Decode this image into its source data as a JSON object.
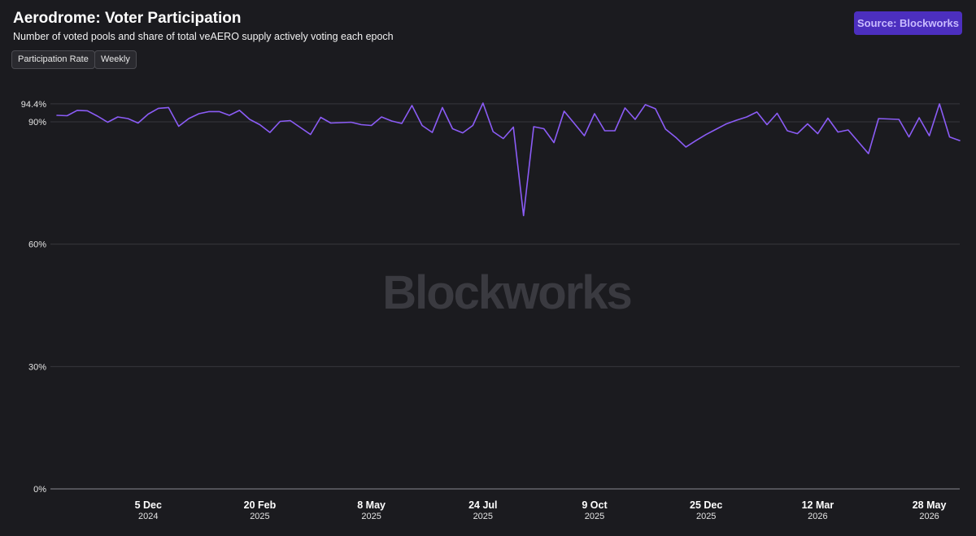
{
  "header": {
    "title": "Aerodrome: Voter Participation",
    "subtitle": "Number of voted pools and share of total veAERO supply actively voting each epoch",
    "filters": [
      "Participation Rate",
      "Weekly"
    ],
    "source_button": "Source: Blockworks"
  },
  "watermark": "Blockworks",
  "colors": {
    "background": "#1b1b1f",
    "line": "#8b5cf6",
    "grid": "#37373c",
    "source_button": "#4c2fbf"
  },
  "chart_data": {
    "type": "line",
    "title": "Aerodrome: Voter Participation",
    "subtitle": "Number of voted pools and share of total veAERO supply actively voting each epoch",
    "xlabel": "",
    "ylabel": "",
    "ylim": [
      0,
      100
    ],
    "grid": "horizontal",
    "y_ticks": [
      {
        "value": 0,
        "label": "0%"
      },
      {
        "value": 30,
        "label": "30%"
      },
      {
        "value": 60,
        "label": "60%"
      },
      {
        "value": 90,
        "label": "90%"
      },
      {
        "value": 94.4,
        "label": "94.4%"
      }
    ],
    "x_range": [
      "2024-10-03",
      "2026-06-18"
    ],
    "x_ticks": [
      {
        "date": "2024-12-05",
        "label": "5 Dec",
        "year": "2024"
      },
      {
        "date": "2025-02-20",
        "label": "20 Feb",
        "year": "2025"
      },
      {
        "date": "2025-05-08",
        "label": "8 May",
        "year": "2025"
      },
      {
        "date": "2025-07-24",
        "label": "24 Jul",
        "year": "2025"
      },
      {
        "date": "2025-10-09",
        "label": "9 Oct",
        "year": "2025"
      },
      {
        "date": "2025-12-25",
        "label": "25 Dec",
        "year": "2025"
      },
      {
        "date": "2026-03-12",
        "label": "12 Mar",
        "year": "2026"
      },
      {
        "date": "2026-05-28",
        "label": "28 May",
        "year": "2026"
      }
    ],
    "series": [
      {
        "color": "#8b5cf6",
        "x": [
          "2024-10-03",
          "2024-10-10",
          "2024-10-17",
          "2024-10-24",
          "2024-10-31",
          "2024-11-07",
          "2024-11-14",
          "2024-11-21",
          "2024-11-28",
          "2024-12-05",
          "2024-12-12",
          "2024-12-19",
          "2024-12-26",
          "2025-01-02",
          "2025-01-09",
          "2025-01-16",
          "2025-01-23",
          "2025-01-30",
          "2025-02-06",
          "2025-02-13",
          "2025-02-20",
          "2025-02-27",
          "2025-03-06",
          "2025-03-13",
          "2025-03-20",
          "2025-03-27",
          "2025-04-03",
          "2025-04-10",
          "2025-04-17",
          "2025-04-24",
          "2025-05-01",
          "2025-05-08",
          "2025-05-15",
          "2025-05-22",
          "2025-05-29",
          "2025-06-05",
          "2025-06-12",
          "2025-06-19",
          "2025-06-26",
          "2025-07-03",
          "2025-07-10",
          "2025-07-17",
          "2025-07-24",
          "2025-07-31",
          "2025-08-07",
          "2025-08-14",
          "2025-08-21",
          "2025-08-28",
          "2025-09-04",
          "2025-09-11",
          "2025-09-18",
          "2025-09-25",
          "2025-10-02",
          "2025-10-09",
          "2025-10-16",
          "2025-10-23",
          "2025-10-30",
          "2025-11-06",
          "2025-11-13",
          "2025-11-20",
          "2025-11-27",
          "2025-12-04",
          "2025-12-11",
          "2025-12-18",
          "2025-12-25",
          "2026-01-01",
          "2026-01-08",
          "2026-01-15",
          "2026-01-22",
          "2026-01-29",
          "2026-02-05",
          "2026-02-12",
          "2026-02-19",
          "2026-02-26",
          "2026-03-05",
          "2026-03-12",
          "2026-03-19",
          "2026-03-26",
          "2026-04-02",
          "2026-04-09",
          "2026-04-16",
          "2026-04-23",
          "2026-04-30",
          "2026-05-07",
          "2026-05-14",
          "2026-05-21",
          "2026-05-28",
          "2026-06-04",
          "2026-06-11",
          "2026-06-18"
        ],
        "y": [
          91.6,
          91.5,
          92.8,
          92.7,
          91.4,
          89.9,
          91.2,
          90.8,
          89.7,
          91.9,
          93.3,
          93.5,
          88.9,
          90.8,
          92.0,
          92.5,
          92.5,
          91.6,
          92.8,
          90.6,
          89.3,
          87.4,
          90.1,
          90.3,
          88.6,
          86.9,
          91.1,
          89.7,
          89.8,
          89.9,
          89.3,
          89.1,
          91.2,
          90.2,
          89.6,
          94.0,
          89.1,
          87.4,
          93.5,
          88.3,
          87.3,
          89.1,
          94.6,
          87.6,
          85.9,
          88.7,
          67.0,
          88.8,
          88.3,
          84.9,
          92.6,
          89.6,
          86.6,
          92.0,
          87.8,
          87.8,
          93.4,
          90.6,
          94.2,
          93.2,
          88.2,
          86.2,
          83.8,
          85.4,
          86.9,
          88.2,
          89.5,
          90.4,
          91.2,
          92.4,
          89.3,
          92.1,
          87.8,
          87.1,
          89.5,
          87.1,
          90.9,
          87.5,
          88.0,
          85.1,
          82.2,
          90.8,
          90.7,
          90.6,
          86.3,
          91.0,
          86.6,
          94.4,
          86.3,
          85.4
        ]
      }
    ]
  }
}
